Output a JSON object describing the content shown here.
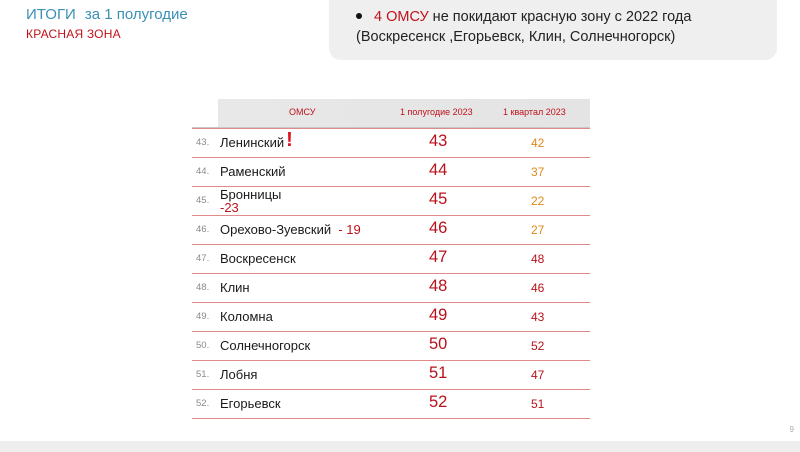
{
  "header": {
    "title_part1": "ИТОГИ",
    "title_part2": "за 1 полугодие",
    "subtitle": "КРАСНАЯ ЗОНА"
  },
  "note": {
    "count": "4 ОМСУ",
    "line1_rest": " не покидают красную зону с 2022 года",
    "line2": "(Воскресенск ,Егорьевск, Клин, Солнечногорск)"
  },
  "table": {
    "headers": {
      "omsu": "ОМСУ",
      "h1_2023": "1 полугодие 2023",
      "q1_2023": "1 квартал 2023"
    },
    "rows": [
      {
        "num": "43.",
        "name": "Ленинский",
        "mark": "!",
        "h1": "43",
        "q1": "42"
      },
      {
        "num": "44.",
        "name": "Раменский",
        "h1": "44",
        "q1": "37"
      },
      {
        "num": "45.",
        "name": "Бронницы",
        "delta": "-23",
        "h1": "45",
        "q1": "22"
      },
      {
        "num": "46.",
        "name": "Орехово-Зуевский",
        "delta": "- 19",
        "h1": "46",
        "q1": "27"
      },
      {
        "num": "47.",
        "name": "Воскресенск",
        "h1": "47",
        "q1": "48"
      },
      {
        "num": "48.",
        "name": "Клин",
        "h1": "48",
        "q1": "46"
      },
      {
        "num": "49.",
        "name": "Коломна",
        "h1": "49",
        "q1": "43"
      },
      {
        "num": "50.",
        "name": "Солнечногорск",
        "h1": "50",
        "q1": "52"
      },
      {
        "num": "51.",
        "name": "Лобня",
        "h1": "51",
        "q1": "47"
      },
      {
        "num": "52.",
        "name": "Егорьевск",
        "h1": "52",
        "q1": "51"
      }
    ]
  },
  "colors": {
    "title_blue": "#3a90b5",
    "accent_red": "#c0111b",
    "value_orange": "#e0891a"
  },
  "page_number": "9"
}
